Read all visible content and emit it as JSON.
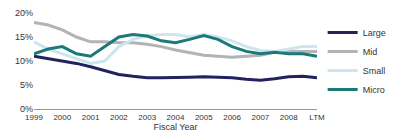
{
  "chart_data": {
    "type": "line",
    "x_label": "Fiscal Year",
    "categories": [
      "1999",
      null,
      "2000",
      null,
      "2001",
      null,
      "2002",
      null,
      "2003",
      null,
      "2004",
      null,
      "2005",
      null,
      "2006",
      null,
      "2007",
      null,
      "2008",
      null,
      "LTM"
    ],
    "series": [
      {
        "name": "Large",
        "color": "#22225e",
        "values": [
          11,
          10.5,
          10,
          9.5,
          8.8,
          8,
          7.2,
          6.8,
          6.5,
          6.5,
          6.5,
          6.6,
          6.7,
          6.6,
          6.5,
          6.2,
          6.0,
          6.3,
          6.7,
          6.8,
          6.5
        ]
      },
      {
        "name": "Mid",
        "color": "#b3b3b3",
        "values": [
          18,
          17.5,
          16.5,
          15,
          14,
          14,
          13.8,
          13.8,
          13.5,
          13,
          12.3,
          11.8,
          11.2,
          11,
          10.8,
          11,
          11.2,
          11.8,
          12,
          12,
          12
        ]
      },
      {
        "name": "Small",
        "color": "#cde6ee",
        "values": [
          14,
          12.5,
          11.5,
          10.5,
          9.5,
          10,
          13,
          14.5,
          15.2,
          15.5,
          15.5,
          15,
          15.5,
          15,
          14.2,
          13,
          12.2,
          12,
          12.5,
          13,
          13
        ]
      },
      {
        "name": "Micro",
        "color": "#1b7a78",
        "values": [
          11.5,
          12.5,
          13,
          11.5,
          11,
          13,
          15,
          15.5,
          15.2,
          14.2,
          13.8,
          14.5,
          15.3,
          14.5,
          13,
          12,
          11.5,
          11.8,
          11.5,
          11.5,
          11
        ]
      }
    ],
    "ylim": [
      0,
      20
    ],
    "yticks": [
      {
        "value": 0,
        "label": "0%"
      },
      {
        "value": 5,
        "label": "5%"
      },
      {
        "value": 10,
        "label": "10%"
      },
      {
        "value": 15,
        "label": "15%"
      },
      {
        "value": 20,
        "label": "20%"
      }
    ],
    "grid": false,
    "legend": "right"
  }
}
